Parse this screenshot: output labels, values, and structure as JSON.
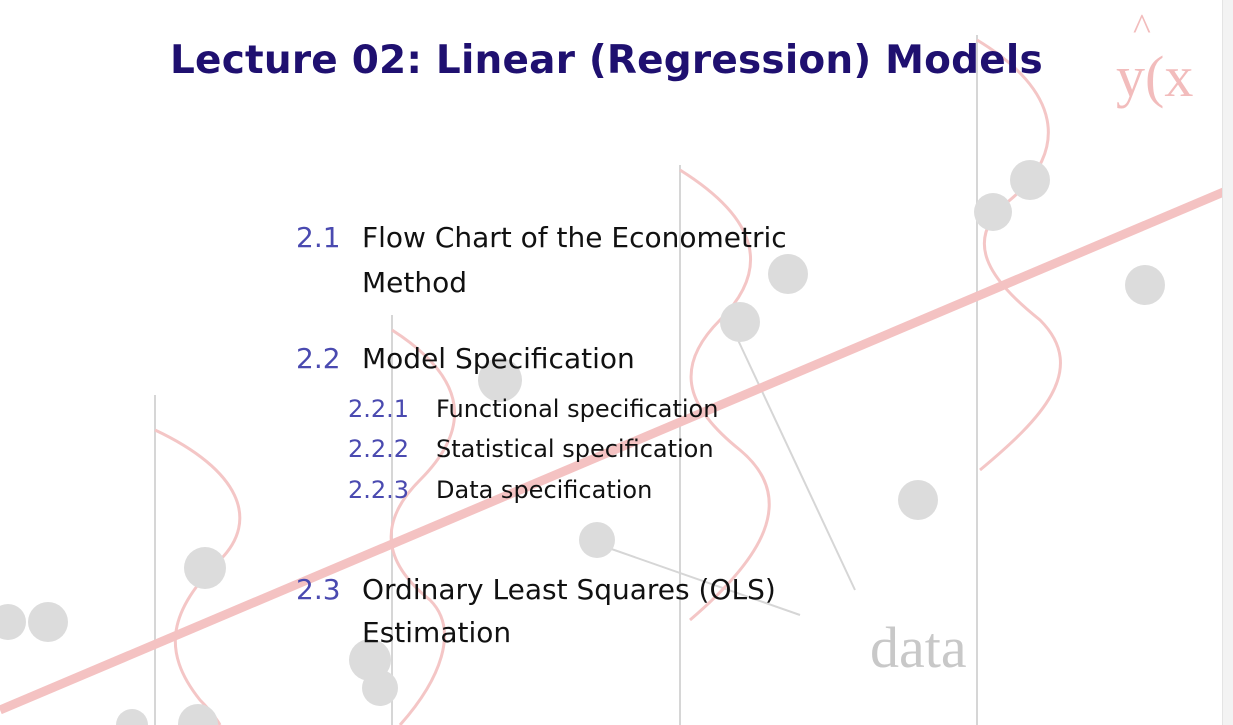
{
  "title": "Lecture 02: Linear (Regression) Models",
  "background": {
    "label_y": "y(x",
    "label_hat": "^",
    "label_data": "data",
    "icon": "regression-line-with-data-points-watermark"
  },
  "toc": {
    "sections": [
      {
        "number": "2.1",
        "line1": "Flow Chart of the Econometric",
        "line2": "Method"
      },
      {
        "number": "2.2",
        "line1": "Model Specification",
        "line2": ""
      },
      {
        "number": "2.3",
        "line1": "Ordinary Least Squares (OLS)",
        "line2": "Estimation"
      }
    ],
    "subsections": [
      {
        "number": "2.2.1",
        "text": "Functional specification"
      },
      {
        "number": "2.2.2",
        "text": "Statistical specification"
      },
      {
        "number": "2.2.3",
        "text": "Data specification"
      }
    ]
  },
  "colors": {
    "title": "#1f1070",
    "section_number": "#4a4ab0",
    "regression_line": "#f4c2c2",
    "data_points": "#dcdcdc"
  }
}
